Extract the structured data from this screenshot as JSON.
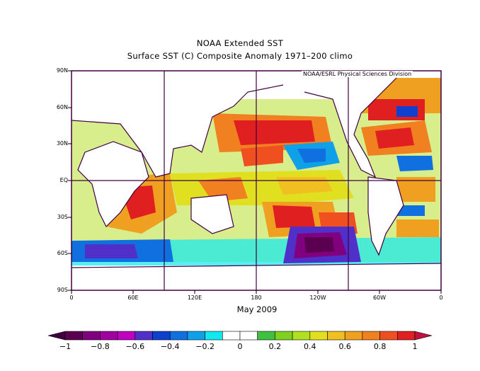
{
  "title_line1": "NOAA Extended SST",
  "title_line2": "Surface SST (C) Composite Anomaly 1971–200 climo",
  "credit": "NOAA/ESRL Physical Sciences Division",
  "date_label": "May 2009",
  "lat_labels": [
    "90N",
    "60N",
    "30N",
    "EQ",
    "30S",
    "60S",
    "90S"
  ],
  "lon_labels": [
    "0",
    "60E",
    "120E",
    "180",
    "120W",
    "60W",
    "0"
  ],
  "colorbar": {
    "labels": [
      "−1",
      "−0.8",
      "−0.6",
      "−0.4",
      "−0.2",
      "0",
      "0.2",
      "0.4",
      "0.6",
      "0.8",
      "1"
    ],
    "colors": [
      "#5b0050",
      "#800080",
      "#a000a0",
      "#c000c0",
      "#5030c8",
      "#1040d0",
      "#1070e0",
      "#10a0e8",
      "#10e8f0",
      "#ffffff",
      "#ffffff",
      "#40c040",
      "#80d020",
      "#b0e020",
      "#e0e020",
      "#f0c020",
      "#f0a020",
      "#f08020",
      "#f05020",
      "#e02020"
    ],
    "underflow_color": "#400040",
    "overflow_color": "#c01040"
  }
}
